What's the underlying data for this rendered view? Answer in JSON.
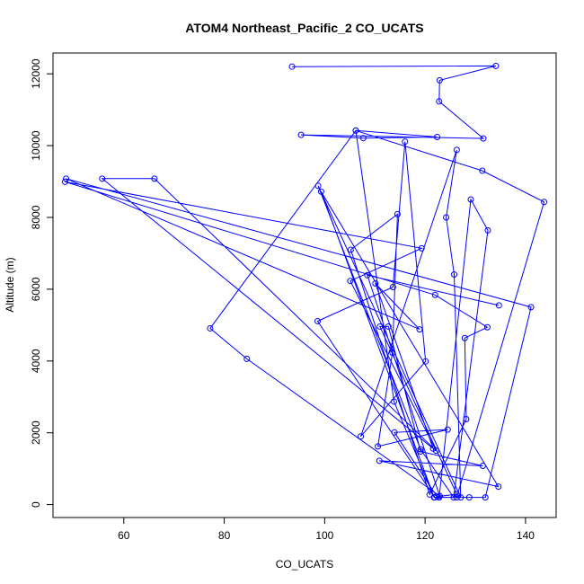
{
  "chart_data": {
    "type": "line",
    "title": "ATOM4 Northeast_Pacific_2 CO_UCATS",
    "xlabel": "CO_UCATS",
    "ylabel": "Altitude (m)",
    "xlim": [
      45.9,
      146.1
    ],
    "ylim": [
      -360,
      12580
    ],
    "xticks": [
      60,
      80,
      100,
      120,
      140
    ],
    "yticks": [
      0,
      2000,
      4000,
      6000,
      8000,
      10000,
      12000
    ],
    "grid": false,
    "legend": "none",
    "color": "#0000ff",
    "marker": "open-circle",
    "series": [
      {
        "points": [
          [
            93.5,
            12200
          ],
          [
            134.1,
            12220
          ],
          [
            122.9,
            11820
          ],
          [
            122.8,
            11230
          ],
          [
            131.6,
            10200
          ],
          [
            95.3,
            10300
          ],
          [
            107.7,
            10210
          ],
          [
            122.4,
            10240
          ],
          [
            106.2,
            10420
          ],
          [
            131.4,
            9300
          ],
          [
            143.7,
            8430
          ],
          [
            126.3,
            200
          ],
          [
            122.8,
            200
          ],
          [
            129.1,
            8500
          ],
          [
            132.5,
            7640
          ],
          [
            125.7,
            200
          ],
          [
            119.1,
            1540
          ],
          [
            98.7,
            8880
          ],
          [
            127.1,
            200
          ],
          [
            125.8,
            6410
          ],
          [
            124.2,
            8000
          ],
          [
            126.3,
            9880
          ],
          [
            107.2,
            1900
          ],
          [
            120.1,
            3990
          ],
          [
            116.0,
            10110
          ],
          [
            113.6,
            6060
          ],
          [
            98.6,
            5110
          ],
          [
            121.9,
            200
          ],
          [
            128.8,
            200
          ],
          [
            132.0,
            200
          ],
          [
            141.1,
            5500
          ],
          [
            48.5,
            9080
          ],
          [
            118.9,
            4880
          ],
          [
            110.1,
            6160
          ],
          [
            121.6,
            1560
          ],
          [
            55.7,
            9080
          ],
          [
            66.1,
            9080
          ],
          [
            122.2,
            1500
          ],
          [
            105.1,
            6230
          ],
          [
            119.3,
            7140
          ],
          [
            48.3,
            8990
          ],
          [
            122.0,
            5840
          ],
          [
            132.4,
            4940
          ],
          [
            127.9,
            4640
          ],
          [
            128.2,
            2380
          ],
          [
            120.9,
            280
          ],
          [
            105.2,
            7100
          ],
          [
            114.5,
            8090
          ],
          [
            113.5,
            4230
          ],
          [
            110.6,
            1620
          ],
          [
            124.5,
            2090
          ],
          [
            113.9,
            2010
          ],
          [
            122.4,
            220
          ],
          [
            126.3,
            290
          ],
          [
            111.0,
            4960
          ],
          [
            112.7,
            4960
          ],
          [
            119.1,
            1480
          ],
          [
            131.5,
            1080
          ],
          [
            110.9,
            1220
          ],
          [
            134.6,
            500
          ],
          [
            99.3,
            8720
          ],
          [
            121.8,
            200
          ],
          [
            113.8,
            2870
          ],
          [
            106.2,
            10420
          ],
          [
            77.2,
            4910
          ],
          [
            84.5,
            4060
          ],
          [
            122.9,
            240
          ],
          [
            108.5,
            6390
          ],
          [
            134.7,
            5550
          ]
        ]
      }
    ]
  }
}
